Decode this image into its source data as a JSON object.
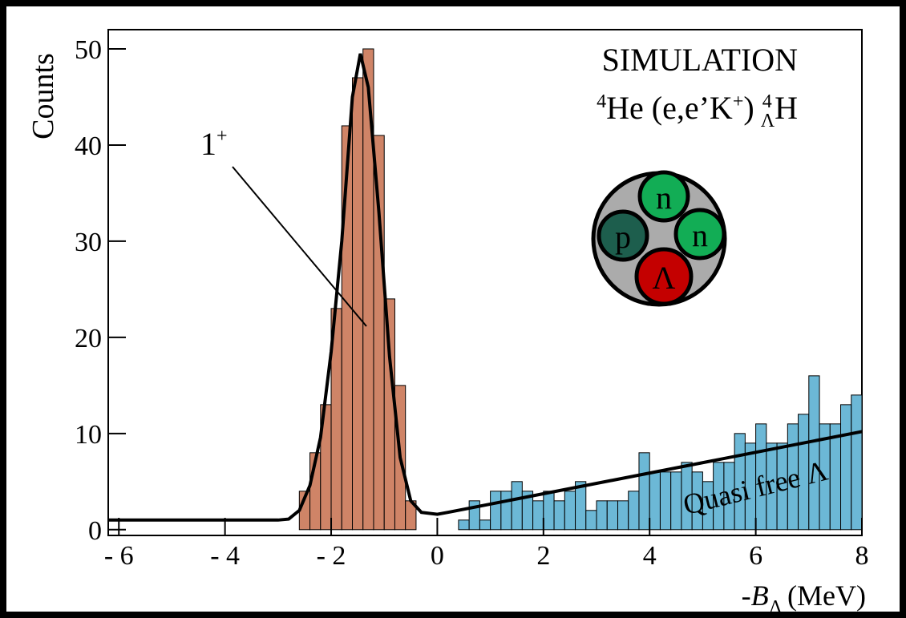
{
  "chart_data": {
    "type": "histogram",
    "y_label": "Counts",
    "x_label": {
      "prefix": "-",
      "symbol": "B",
      "sub": "Λ",
      "unit": "(MeV)"
    },
    "title": "SIMULATION",
    "title_color": "#c8103e",
    "reaction": {
      "mass1": "4",
      "target": "He (e,e’K",
      "charge": "+",
      "close": ") ",
      "mass2": "4",
      "sub": "Λ",
      "product": "H"
    },
    "peak_label": {
      "base": "1",
      "sup": "+"
    },
    "region_label": "Quasi free Λ",
    "nucleus": {
      "top": "n",
      "left": "p",
      "right": "n",
      "bottom": "Λ"
    },
    "xlim": [
      -6.2,
      8
    ],
    "ylim": [
      -0.6,
      52
    ],
    "xticks": [
      {
        "value": -6,
        "label": "- 6"
      },
      {
        "value": -4,
        "label": "- 4"
      },
      {
        "value": -2,
        "label": "- 2"
      },
      0,
      2,
      4,
      6,
      8
    ],
    "yticks": [
      0,
      10,
      20,
      30,
      40,
      50
    ],
    "series": [
      {
        "color": "#cf8467",
        "bins": [
          -2.6,
          -2.4,
          -2.2,
          -2.0,
          -1.8,
          -1.6,
          -1.4,
          -1.2,
          -1.0,
          -0.8,
          -0.6,
          -0.4
        ],
        "values": [
          4,
          8,
          13,
          23,
          42,
          47,
          50,
          41,
          24,
          15,
          3
        ]
      },
      {
        "color": "#6cb8d6",
        "bins": [
          0.4,
          0.6,
          0.8,
          1.0,
          1.2,
          1.4,
          1.6,
          1.8,
          2.0,
          2.2,
          2.4,
          2.6,
          2.8,
          3.0,
          3.2,
          3.4,
          3.6,
          3.8,
          4.0,
          4.2,
          4.4,
          4.6,
          4.8,
          5.0,
          5.2,
          5.4,
          5.6,
          5.8,
          6.0,
          6.2,
          6.4,
          6.6,
          6.8,
          7.0,
          7.2,
          7.4,
          7.6,
          7.8,
          8.0
        ],
        "values": [
          1,
          3,
          1,
          4,
          4,
          5,
          4,
          3,
          4,
          3,
          4,
          5,
          2,
          3,
          3,
          3,
          4,
          8,
          6,
          6,
          6,
          7,
          6,
          5,
          7,
          7,
          10,
          9,
          11,
          9,
          9,
          11,
          12,
          16,
          11,
          11,
          13,
          14
        ]
      }
    ],
    "fit": {
      "color": "#000000",
      "x": [
        -6.2,
        -3.0,
        -2.8,
        -2.6,
        -2.4,
        -2.2,
        -2.0,
        -1.8,
        -1.6,
        -1.45,
        -1.3,
        -1.1,
        -0.9,
        -0.7,
        -0.5,
        -0.3,
        0,
        0.2,
        8
      ],
      "y": [
        1,
        1,
        1.1,
        2,
        4.6,
        9.6,
        18.5,
        30,
        45,
        49.5,
        46,
        33,
        18,
        7.5,
        3,
        1.8,
        1.6,
        1.8,
        10.2
      ]
    }
  }
}
